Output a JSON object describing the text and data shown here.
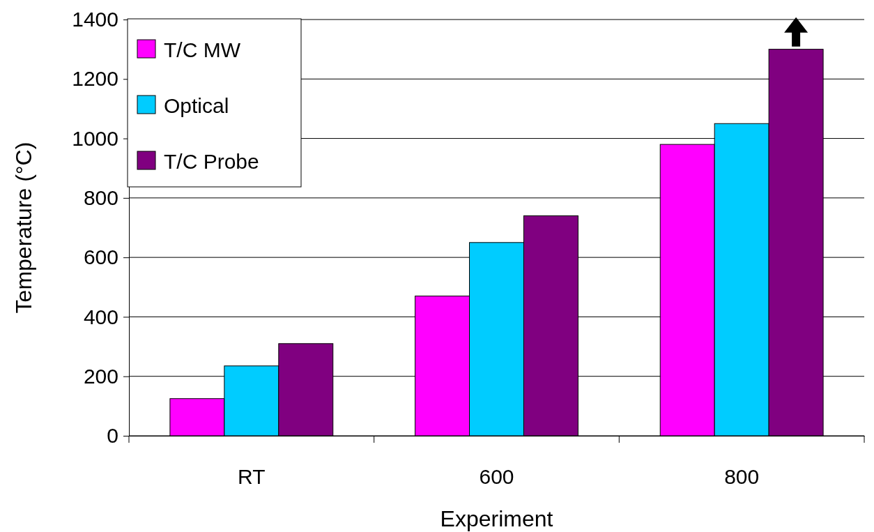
{
  "chart_data": {
    "type": "bar",
    "xlabel": "Experiment",
    "ylabel": "Temperature (°C)",
    "categories": [
      "RT",
      "600",
      "800"
    ],
    "series": [
      {
        "name": "T/C MW",
        "color": "#ff00ff",
        "values": [
          125,
          470,
          980
        ]
      },
      {
        "name": "Optical",
        "color": "#00ccff",
        "values": [
          235,
          650,
          1050
        ]
      },
      {
        "name": "T/C Probe",
        "color": "#800080",
        "values": [
          310,
          740,
          1300
        ]
      }
    ],
    "ylim": [
      0,
      1400
    ],
    "yticks": [
      0,
      200,
      400,
      600,
      800,
      1000,
      1200,
      1400
    ],
    "grid": "y",
    "legend": "top left"
  }
}
